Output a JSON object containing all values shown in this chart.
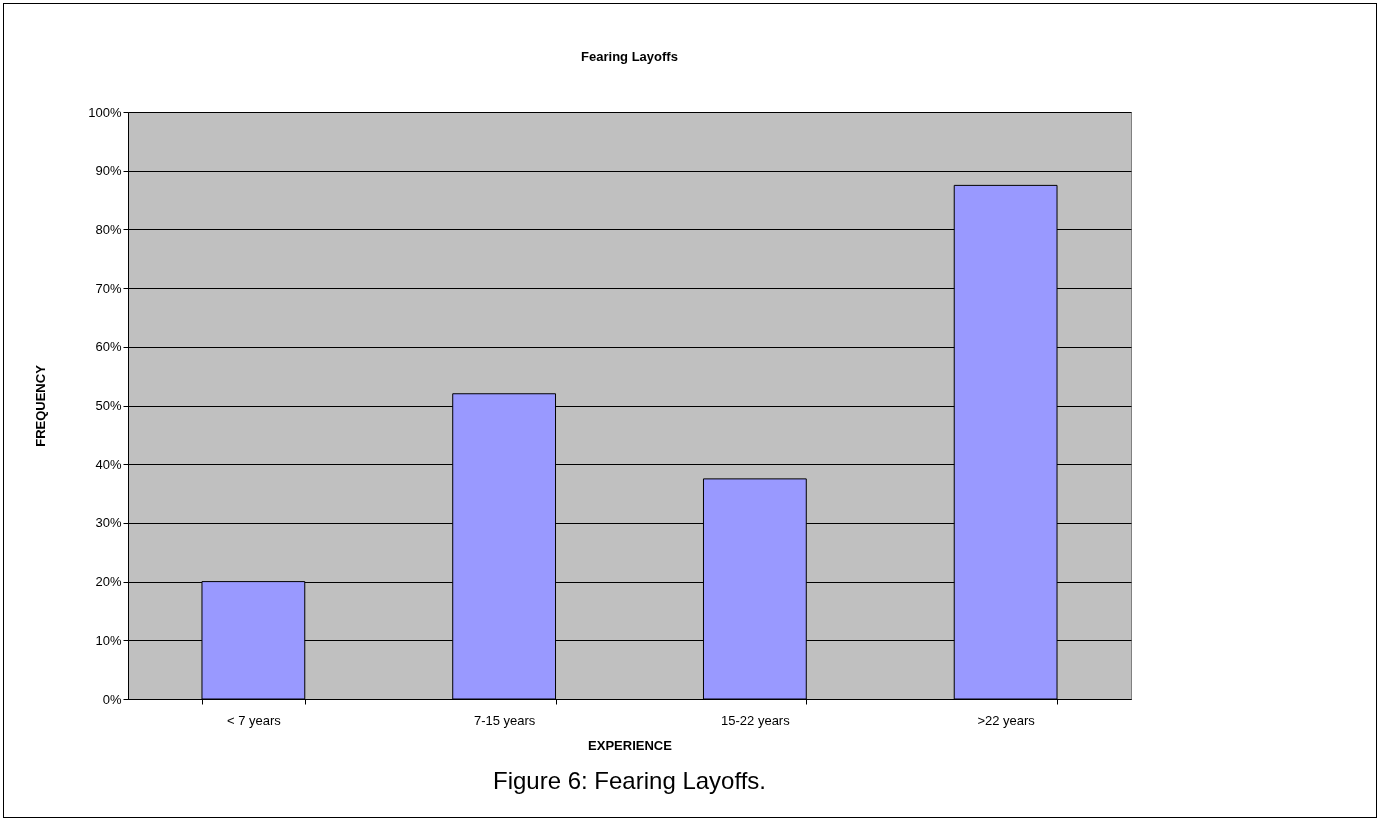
{
  "chart_data": {
    "type": "bar",
    "title": "Fearing Layoffs",
    "xlabel": "EXPERIENCE",
    "ylabel": "FREQUENCY",
    "categories": [
      "< 7 years",
      "7-15 years",
      "15-22 years",
      ">22 years"
    ],
    "values": [
      20,
      52,
      37.5,
      87.5
    ],
    "color": "#9999ff",
    "ylim": [
      0,
      100
    ],
    "yticks": [
      {
        "value": 0,
        "label": "0%"
      },
      {
        "value": 10,
        "label": "10%"
      },
      {
        "value": 20,
        "label": "20%"
      },
      {
        "value": 30,
        "label": "30%"
      },
      {
        "value": 40,
        "label": "40%"
      },
      {
        "value": 50,
        "label": "50%"
      },
      {
        "value": 60,
        "label": "60%"
      },
      {
        "value": 70,
        "label": "70%"
      },
      {
        "value": 80,
        "label": "80%"
      },
      {
        "value": 90,
        "label": "90%"
      },
      {
        "value": 100,
        "label": "100%"
      }
    ],
    "grid": "y",
    "annotations": [
      "Figure 6:  Fearing Layoffs."
    ]
  }
}
